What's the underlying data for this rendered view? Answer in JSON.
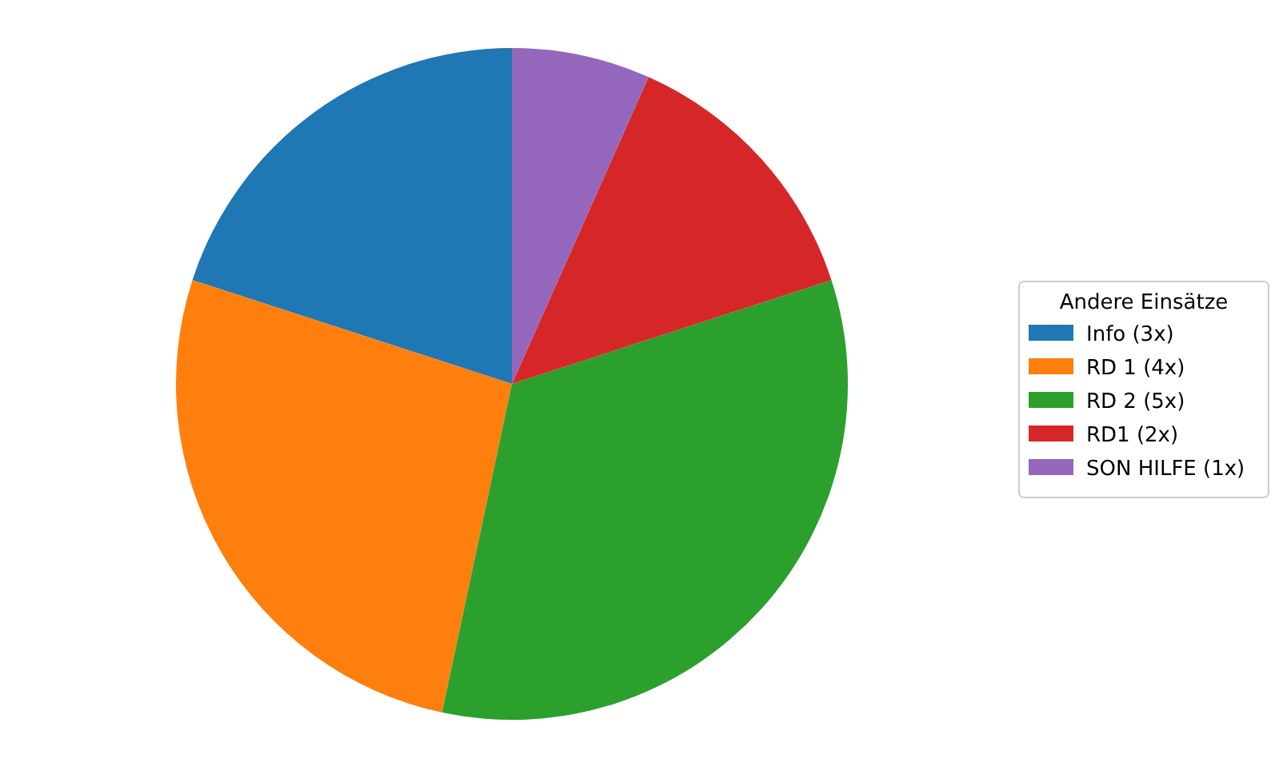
{
  "chart_data": {
    "type": "pie",
    "legend_title": "Andere Einsätze",
    "legend": "right",
    "categories": [
      "Info (3x)",
      "RD 1 (4x)",
      "RD 2 (5x)",
      "RD1 (2x)",
      "SON HILFE (1x)"
    ],
    "values": [
      3,
      4,
      5,
      2,
      1
    ],
    "colors": [
      "#1f77b4",
      "#ff7f0e",
      "#2ca02c",
      "#d62728",
      "#9467bd"
    ]
  }
}
